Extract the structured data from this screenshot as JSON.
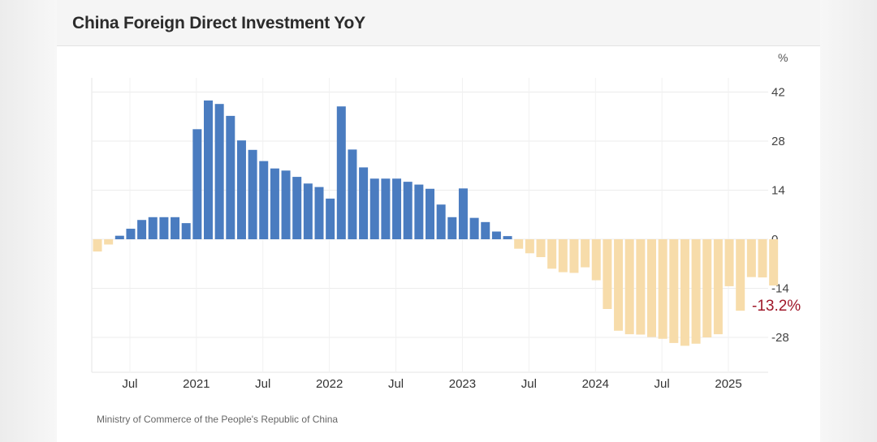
{
  "header": {
    "title": "China Foreign Direct Investment YoY"
  },
  "unit": "%",
  "source": "Ministry of Commerce of the People's Republic of China",
  "last_value_label": "-13.2%",
  "colors": {
    "positive": "#4a7cc0",
    "negative": "#f7dcaa",
    "last_label": "#a0182a"
  },
  "chart_data": {
    "type": "bar",
    "title": "China Foreign Direct Investment YoY",
    "xlabel": "",
    "ylabel": "%",
    "ylim": [
      -38,
      44
    ],
    "yticks": [
      42,
      28,
      14,
      0,
      -14,
      -28
    ],
    "xtick_labels": [
      "Jul",
      "2021",
      "Jul",
      "2022",
      "Jul",
      "2023",
      "Jul",
      "2024",
      "Jul",
      "2025"
    ],
    "grid": true,
    "categories": [
      "2020-04",
      "2020-05",
      "2020-06",
      "2020-07",
      "2020-08",
      "2020-09",
      "2020-10",
      "2020-11",
      "2020-12",
      "2021-01",
      "2021-02",
      "2021-03",
      "2021-04",
      "2021-05",
      "2021-06",
      "2021-07",
      "2021-08",
      "2021-09",
      "2021-10",
      "2021-11",
      "2021-12",
      "2022-01",
      "2022-02",
      "2022-03",
      "2022-04",
      "2022-05",
      "2022-06",
      "2022-07",
      "2022-08",
      "2022-09",
      "2022-10",
      "2022-11",
      "2022-12",
      "2023-01",
      "2023-02",
      "2023-03",
      "2023-04",
      "2023-05",
      "2023-06",
      "2023-07",
      "2023-08",
      "2023-09",
      "2023-10",
      "2023-11",
      "2023-12",
      "2024-01",
      "2024-02",
      "2024-03",
      "2024-04",
      "2024-05",
      "2024-06",
      "2024-07",
      "2024-08",
      "2024-09",
      "2024-10",
      "2024-11",
      "2024-12",
      "2025-01",
      "2025-02",
      "2025-03",
      "2025-04",
      "2025-05"
    ],
    "values": [
      -3.5,
      -1.5,
      1.0,
      3.0,
      5.5,
      6.3,
      6.3,
      6.3,
      4.6,
      31.4,
      39.6,
      38.6,
      35.2,
      28.2,
      25.5,
      22.3,
      20.2,
      19.6,
      17.8,
      15.9,
      14.9,
      11.6,
      37.9,
      25.6,
      20.5,
      17.3,
      17.3,
      17.3,
      16.4,
      15.6,
      14.4,
      9.9,
      6.3,
      14.5,
      6.1,
      4.9,
      2.2,
      0.9,
      -2.7,
      -4.0,
      -5.1,
      -8.4,
      -9.4,
      -9.6,
      -8.0,
      -11.7,
      -19.9,
      -26.1,
      -27.1,
      -27.2,
      -27.9,
      -28.4,
      -29.6,
      -30.4,
      -29.8,
      -28.0,
      -27.1,
      -13.4,
      -20.4,
      -10.8,
      -10.9,
      -13.2
    ]
  }
}
